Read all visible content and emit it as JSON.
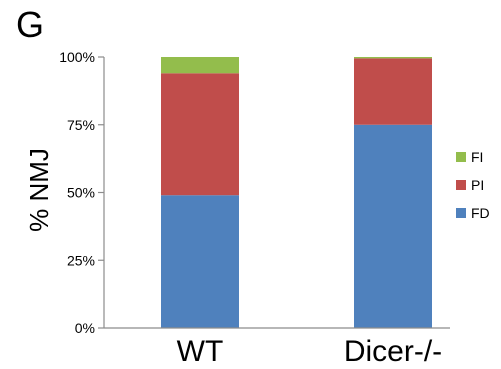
{
  "panel_label": "G",
  "colors": {
    "FI": "#93bd4c",
    "PI": "#c04d4b",
    "FD": "#4f81bd"
  },
  "chart_data": {
    "type": "bar",
    "stacked": true,
    "categories": [
      "WT",
      "Dicer-/-"
    ],
    "series": [
      {
        "name": "FD",
        "values": [
          49,
          75
        ]
      },
      {
        "name": "PI",
        "values": [
          45,
          24.5
        ]
      },
      {
        "name": "FI",
        "values": [
          6,
          0.5
        ]
      }
    ],
    "ylabel": "% NMJ",
    "xlabel": "",
    "ylim": [
      0,
      100
    ],
    "yticks": [
      "0%",
      "25%",
      "50%",
      "75%",
      "100%"
    ],
    "legend_order": [
      "FI",
      "PI",
      "FD"
    ],
    "legend_position": "right",
    "grid": false
  }
}
